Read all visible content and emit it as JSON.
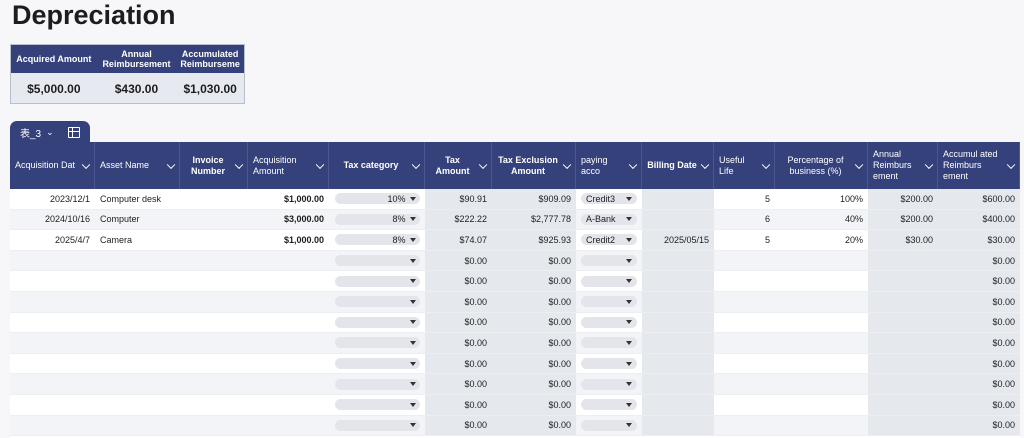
{
  "title": "Depreciation",
  "summary": {
    "headers": [
      "Acquired Amount",
      "Annual Reimbursement",
      "Accumulated Reimburseme"
    ],
    "values": [
      "$5,000.00",
      "$430.00",
      "$1,030.00"
    ]
  },
  "sheet_tab": {
    "name": "表_3"
  },
  "columns": [
    "Acquisition Dat",
    "Asset Name",
    "Invoice Number",
    "Acquisition Amount",
    "Tax category",
    "Tax Amount",
    "Tax Exclusion Amount",
    "paying acco",
    "Billing Date",
    "Useful Life",
    "Percentage of business (%)",
    "Annual Reimburs ement",
    "Accumul ated Reimburs ement"
  ],
  "rows": [
    {
      "date": "2023/12/1",
      "asset": "Computer desk",
      "invoice": "",
      "amount": "$1,000.00",
      "tax_cat": "10%",
      "tax": "$90.91",
      "excl": "$909.09",
      "account": "Credit3",
      "billing": "",
      "life": "5",
      "pct": "100%",
      "annual": "$200.00",
      "accum": "$600.00"
    },
    {
      "date": "2024/10/16",
      "asset": "Computer",
      "invoice": "",
      "amount": "$3,000.00",
      "tax_cat": "8%",
      "tax": "$222.22",
      "excl": "$2,777.78",
      "account": "A-Bank",
      "billing": "",
      "life": "6",
      "pct": "40%",
      "annual": "$200.00",
      "accum": "$400.00"
    },
    {
      "date": "2025/4/7",
      "asset": "Camera",
      "invoice": "",
      "amount": "$1,000.00",
      "tax_cat": "8%",
      "tax": "$74.07",
      "excl": "$925.93",
      "account": "Credit2",
      "billing": "2025/05/15",
      "life": "5",
      "pct": "20%",
      "annual": "$30.00",
      "accum": "$30.00"
    },
    {
      "date": "",
      "asset": "",
      "invoice": "",
      "amount": "",
      "tax_cat": "",
      "tax": "$0.00",
      "excl": "$0.00",
      "account": "",
      "billing": "",
      "life": "",
      "pct": "",
      "annual": "",
      "accum": "$0.00"
    },
    {
      "date": "",
      "asset": "",
      "invoice": "",
      "amount": "",
      "tax_cat": "",
      "tax": "$0.00",
      "excl": "$0.00",
      "account": "",
      "billing": "",
      "life": "",
      "pct": "",
      "annual": "",
      "accum": "$0.00"
    },
    {
      "date": "",
      "asset": "",
      "invoice": "",
      "amount": "",
      "tax_cat": "",
      "tax": "$0.00",
      "excl": "$0.00",
      "account": "",
      "billing": "",
      "life": "",
      "pct": "",
      "annual": "",
      "accum": "$0.00"
    },
    {
      "date": "",
      "asset": "",
      "invoice": "",
      "amount": "",
      "tax_cat": "",
      "tax": "$0.00",
      "excl": "$0.00",
      "account": "",
      "billing": "",
      "life": "",
      "pct": "",
      "annual": "",
      "accum": "$0.00"
    },
    {
      "date": "",
      "asset": "",
      "invoice": "",
      "amount": "",
      "tax_cat": "",
      "tax": "$0.00",
      "excl": "$0.00",
      "account": "",
      "billing": "",
      "life": "",
      "pct": "",
      "annual": "",
      "accum": "$0.00"
    },
    {
      "date": "",
      "asset": "",
      "invoice": "",
      "amount": "",
      "tax_cat": "",
      "tax": "$0.00",
      "excl": "$0.00",
      "account": "",
      "billing": "",
      "life": "",
      "pct": "",
      "annual": "",
      "accum": "$0.00"
    },
    {
      "date": "",
      "asset": "",
      "invoice": "",
      "amount": "",
      "tax_cat": "",
      "tax": "$0.00",
      "excl": "$0.00",
      "account": "",
      "billing": "",
      "life": "",
      "pct": "",
      "annual": "",
      "accum": "$0.00"
    },
    {
      "date": "",
      "asset": "",
      "invoice": "",
      "amount": "",
      "tax_cat": "",
      "tax": "$0.00",
      "excl": "$0.00",
      "account": "",
      "billing": "",
      "life": "",
      "pct": "",
      "annual": "",
      "accum": "$0.00"
    },
    {
      "date": "",
      "asset": "",
      "invoice": "",
      "amount": "",
      "tax_cat": "",
      "tax": "$0.00",
      "excl": "$0.00",
      "account": "",
      "billing": "",
      "life": "",
      "pct": "",
      "annual": "",
      "accum": "$0.00"
    }
  ]
}
